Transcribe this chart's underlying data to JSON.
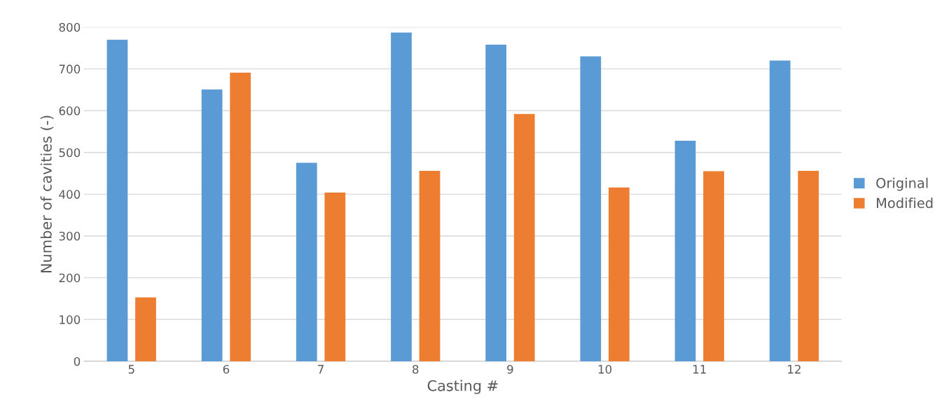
{
  "chart_data": {
    "type": "bar",
    "xlabel": "Casting #",
    "ylabel": "Number of cavities (-)",
    "categories": [
      "5",
      "6",
      "7",
      "8",
      "9",
      "10",
      "11",
      "12"
    ],
    "series": [
      {
        "name": "Original",
        "color": "#5b9bd5",
        "values": [
          770,
          651,
          475,
          787,
          758,
          730,
          528,
          720
        ]
      },
      {
        "name": "Modified",
        "color": "#ed7d31",
        "values": [
          153,
          691,
          404,
          456,
          592,
          416,
          455,
          456
        ]
      }
    ],
    "ylim": [
      0,
      800
    ],
    "yticks": [
      0,
      100,
      200,
      300,
      400,
      500,
      600,
      700,
      800
    ],
    "grid": "y",
    "legend": "right"
  }
}
